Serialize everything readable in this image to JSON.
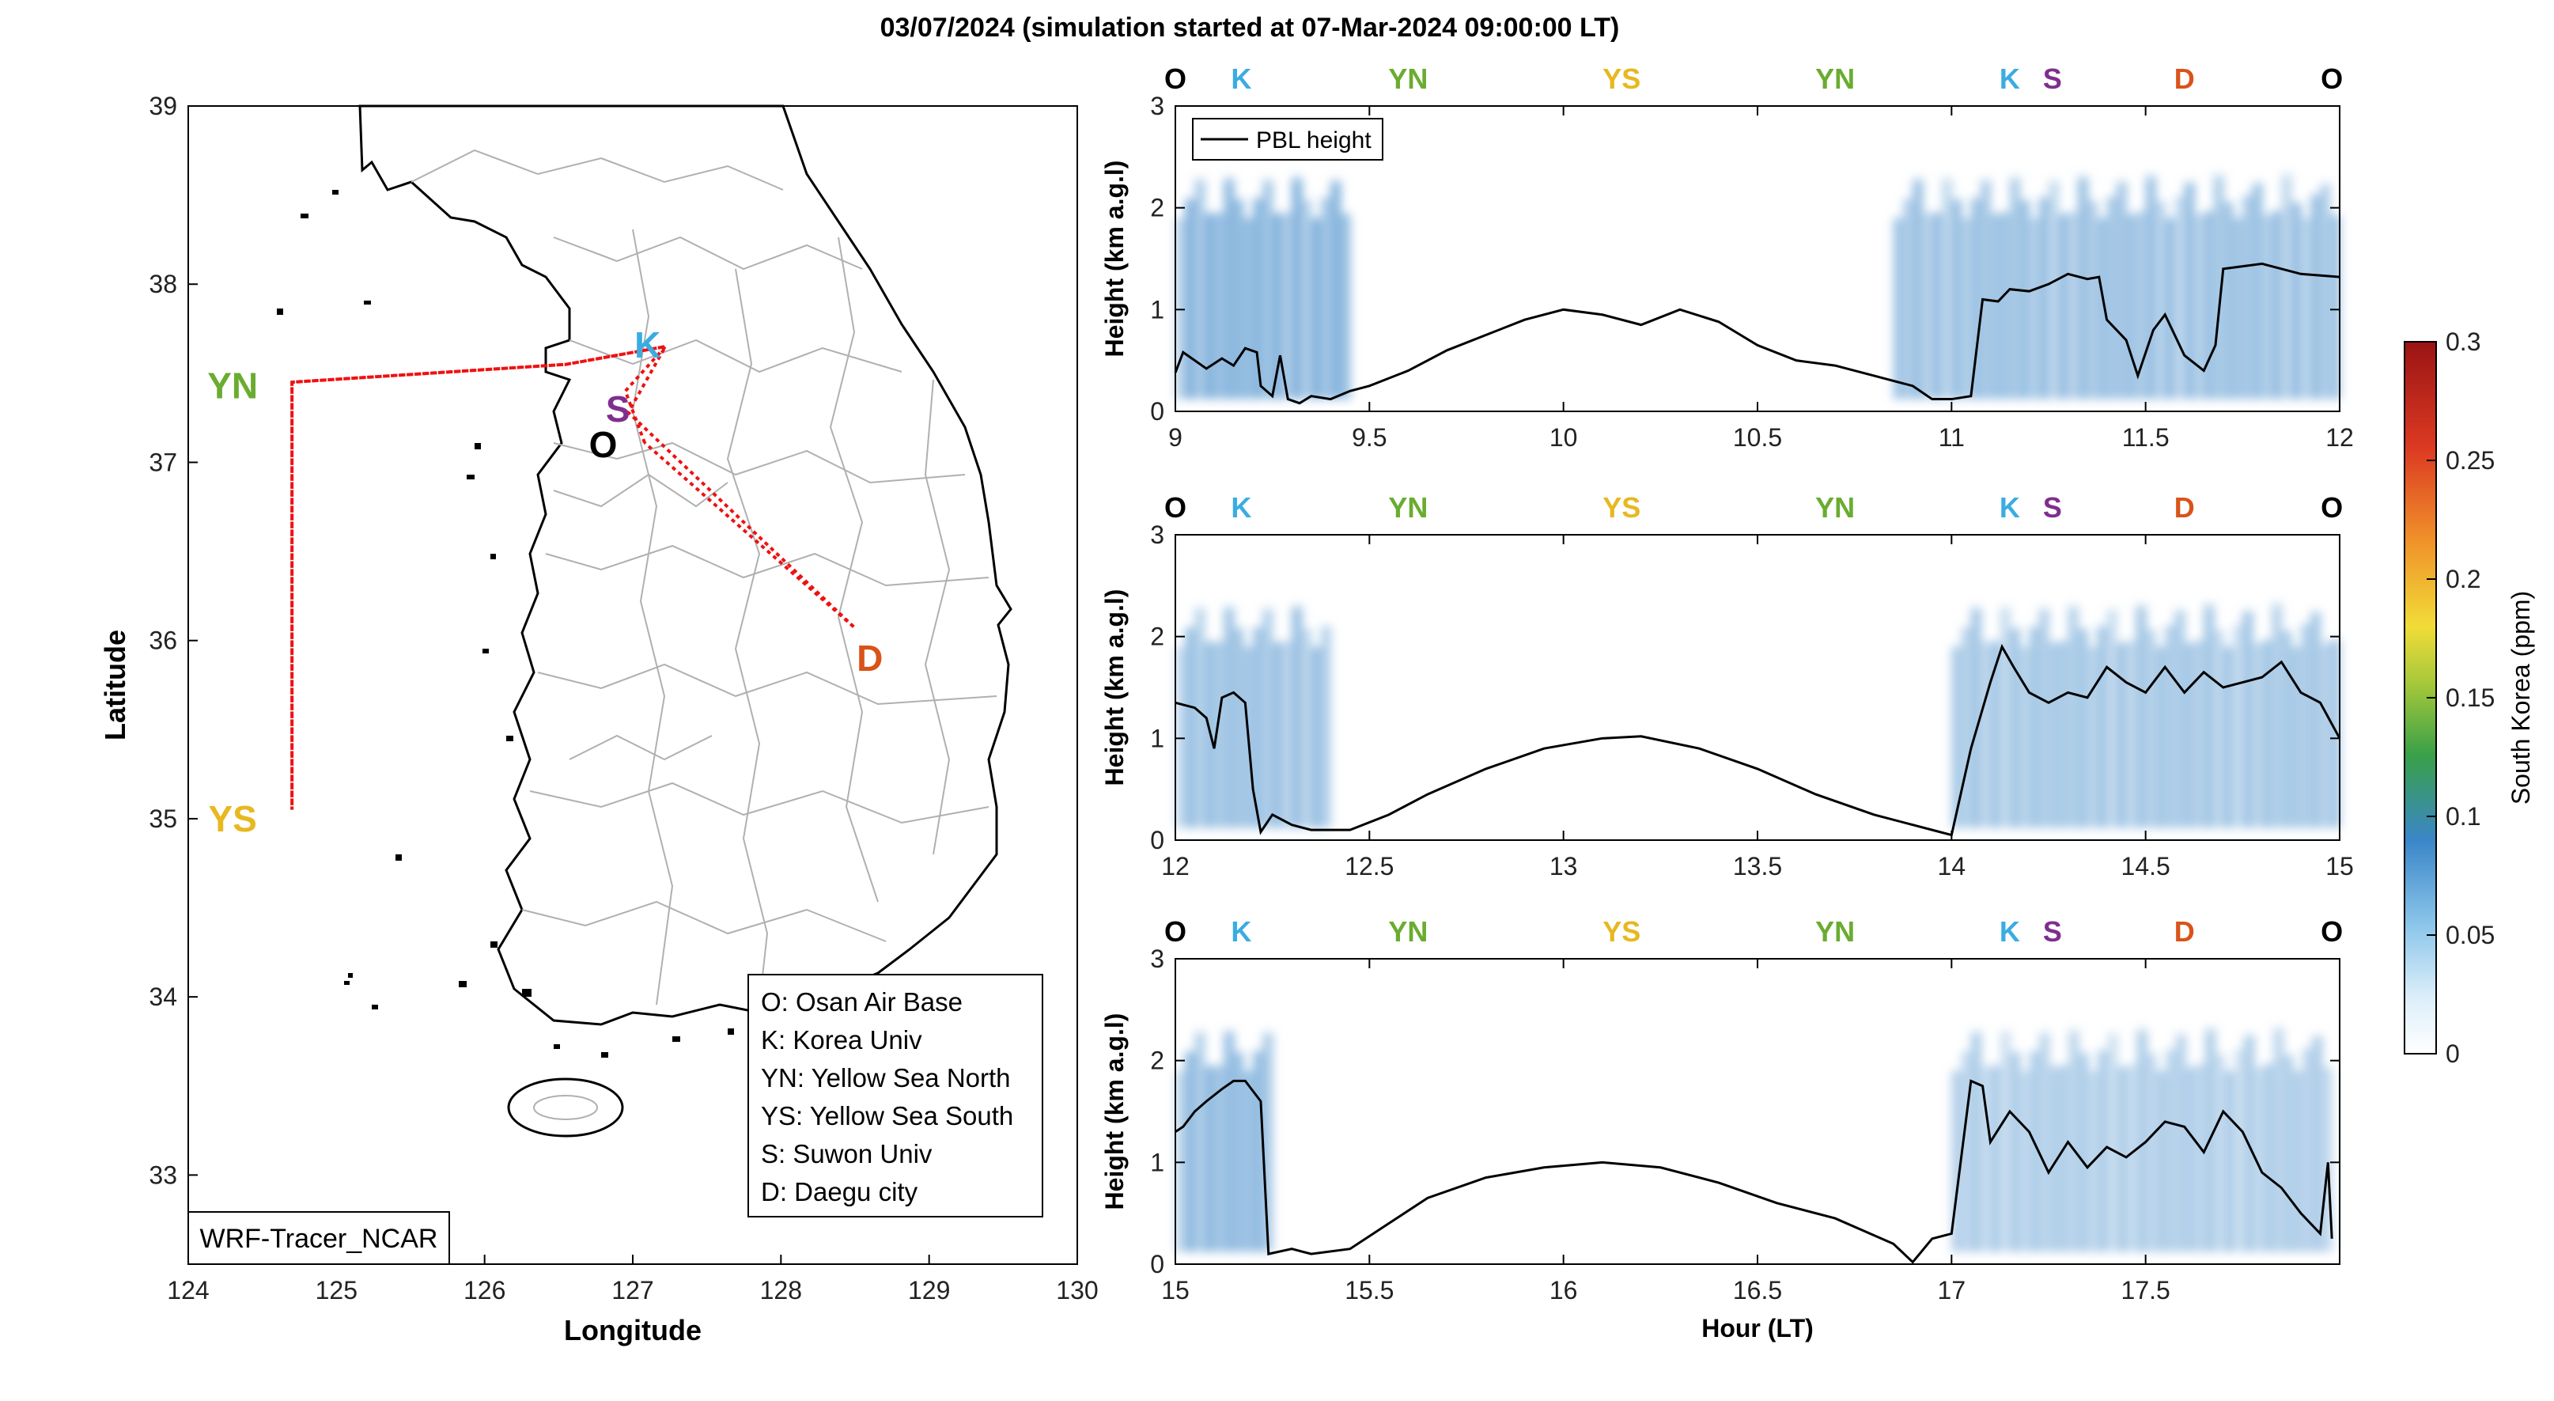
{
  "title": "03/07/2024 (simulation started at 07-Mar-2024 09:00:00 LT)",
  "colors": {
    "O": "#000000",
    "K": "#3aace2",
    "S": "#7e2f8e",
    "YN": "#6aac30",
    "YS": "#e7b820",
    "D": "#d95319",
    "track": "#ee1111",
    "border": "#b0b0b0",
    "coast": "#000000",
    "pbl": "#000000"
  },
  "map": {
    "xlabel": "Longitude",
    "ylabel": "Latitude",
    "xlim": [
      124,
      130
    ],
    "ylim": [
      32.5,
      39
    ],
    "xticks": [
      "124",
      "125",
      "126",
      "127",
      "128",
      "129",
      "130"
    ],
    "yticks": [
      "33",
      "34",
      "35",
      "36",
      "37",
      "38",
      "39"
    ],
    "model_label": "WRF-Tracer_NCAR",
    "legend": [
      "O: Osan Air Base",
      "K: Korea Univ",
      "YN: Yellow Sea North",
      "YS: Yellow Sea South",
      "S: Suwon Univ",
      "D: Daegu city"
    ],
    "sites": [
      {
        "id": "YN",
        "label": "YN",
        "lon": 124.3,
        "lat": 37.43
      },
      {
        "id": "YS",
        "label": "YS",
        "lon": 124.3,
        "lat": 35.0
      },
      {
        "id": "K",
        "label": "K",
        "lon": 127.1,
        "lat": 37.66
      },
      {
        "id": "S",
        "label": "S",
        "lon": 126.9,
        "lat": 37.3
      },
      {
        "id": "O",
        "label": "O",
        "lon": 126.8,
        "lat": 37.1
      },
      {
        "id": "D",
        "label": "D",
        "lon": 128.6,
        "lat": 35.9
      }
    ],
    "track": [
      [
        127.08,
        37.11
      ],
      [
        126.95,
        37.4
      ],
      [
        127.22,
        37.65
      ],
      [
        126.55,
        37.55
      ],
      [
        124.7,
        37.45
      ],
      [
        124.7,
        35.05
      ],
      [
        124.7,
        37.45
      ],
      [
        126.55,
        37.55
      ],
      [
        127.22,
        37.65
      ],
      [
        126.97,
        37.28
      ],
      [
        128.5,
        36.07
      ],
      [
        127.08,
        37.11
      ]
    ]
  },
  "panels_common": {
    "ylabel": "Height (km a.g.l)",
    "xlabel": "Hour (LT)",
    "legend_label": "PBL height",
    "yticks": [
      "0",
      "1",
      "2",
      "3"
    ],
    "ylim": [
      0,
      3
    ]
  },
  "chart_data": [
    {
      "type": "line",
      "series": [
        {
          "name": "PBL height"
        }
      ],
      "xlim": [
        9,
        12
      ],
      "ylim": [
        0,
        3
      ],
      "xticks": [
        "9",
        "9.5",
        "10",
        "10.5",
        "11",
        "11.5",
        "12"
      ],
      "site_labels": [
        {
          "id": "O",
          "label": "O",
          "x": 9.0
        },
        {
          "id": "K",
          "label": "K",
          "x": 9.17
        },
        {
          "id": "YN",
          "label": "YN",
          "x": 9.6
        },
        {
          "id": "YS",
          "label": "YS",
          "x": 10.15
        },
        {
          "id": "YN",
          "label": "YN",
          "x": 10.7
        },
        {
          "id": "K",
          "label": "K",
          "x": 11.15
        },
        {
          "id": "S",
          "label": "S",
          "x": 11.26
        },
        {
          "id": "D",
          "label": "D",
          "x": 11.6
        },
        {
          "id": "O",
          "label": "O",
          "x": 11.98
        }
      ],
      "pbl": [
        [
          9.0,
          0.38
        ],
        [
          9.02,
          0.58
        ],
        [
          9.05,
          0.5
        ],
        [
          9.08,
          0.42
        ],
        [
          9.12,
          0.52
        ],
        [
          9.15,
          0.45
        ],
        [
          9.18,
          0.62
        ],
        [
          9.21,
          0.58
        ],
        [
          9.22,
          0.25
        ],
        [
          9.25,
          0.15
        ],
        [
          9.27,
          0.55
        ],
        [
          9.29,
          0.12
        ],
        [
          9.32,
          0.08
        ],
        [
          9.35,
          0.15
        ],
        [
          9.4,
          0.12
        ],
        [
          9.45,
          0.2
        ],
        [
          9.5,
          0.25
        ],
        [
          9.6,
          0.4
        ],
        [
          9.7,
          0.6
        ],
        [
          9.8,
          0.75
        ],
        [
          9.9,
          0.9
        ],
        [
          10.0,
          1.0
        ],
        [
          10.1,
          0.95
        ],
        [
          10.2,
          0.85
        ],
        [
          10.3,
          1.0
        ],
        [
          10.4,
          0.88
        ],
        [
          10.5,
          0.65
        ],
        [
          10.6,
          0.5
        ],
        [
          10.7,
          0.45
        ],
        [
          10.8,
          0.35
        ],
        [
          10.9,
          0.25
        ],
        [
          10.95,
          0.12
        ],
        [
          11.0,
          0.12
        ],
        [
          11.05,
          0.15
        ],
        [
          11.08,
          1.1
        ],
        [
          11.12,
          1.08
        ],
        [
          11.15,
          1.2
        ],
        [
          11.2,
          1.18
        ],
        [
          11.25,
          1.25
        ],
        [
          11.3,
          1.35
        ],
        [
          11.35,
          1.3
        ],
        [
          11.38,
          1.32
        ],
        [
          11.4,
          0.9
        ],
        [
          11.45,
          0.7
        ],
        [
          11.48,
          0.35
        ],
        [
          11.52,
          0.8
        ],
        [
          11.55,
          0.95
        ],
        [
          11.6,
          0.55
        ],
        [
          11.65,
          0.4
        ],
        [
          11.68,
          0.65
        ],
        [
          11.7,
          1.4
        ],
        [
          11.8,
          1.45
        ],
        [
          11.9,
          1.35
        ],
        [
          12.0,
          1.32
        ]
      ],
      "tracer_patches": [
        {
          "x0": 9.0,
          "x1": 9.45,
          "peak": 0.06
        },
        {
          "x0": 10.85,
          "x1": 12.0,
          "peak": 0.05
        }
      ]
    },
    {
      "type": "line",
      "series": [
        {
          "name": "PBL height"
        }
      ],
      "xlim": [
        12,
        15
      ],
      "ylim": [
        0,
        3
      ],
      "xticks": [
        "12",
        "12.5",
        "13",
        "13.5",
        "14",
        "14.5",
        "15"
      ],
      "site_labels": [
        {
          "id": "O",
          "label": "O",
          "x": 12.0
        },
        {
          "id": "K",
          "label": "K",
          "x": 12.17
        },
        {
          "id": "YN",
          "label": "YN",
          "x": 12.6
        },
        {
          "id": "YS",
          "label": "YS",
          "x": 13.15
        },
        {
          "id": "YN",
          "label": "YN",
          "x": 13.7
        },
        {
          "id": "K",
          "label": "K",
          "x": 14.15
        },
        {
          "id": "S",
          "label": "S",
          "x": 14.26
        },
        {
          "id": "D",
          "label": "D",
          "x": 14.6
        },
        {
          "id": "O",
          "label": "O",
          "x": 14.98
        }
      ],
      "pbl": [
        [
          12.0,
          1.35
        ],
        [
          12.05,
          1.3
        ],
        [
          12.08,
          1.2
        ],
        [
          12.1,
          0.9
        ],
        [
          12.12,
          1.4
        ],
        [
          12.15,
          1.45
        ],
        [
          12.18,
          1.35
        ],
        [
          12.2,
          0.5
        ],
        [
          12.22,
          0.08
        ],
        [
          12.25,
          0.25
        ],
        [
          12.3,
          0.15
        ],
        [
          12.35,
          0.1
        ],
        [
          12.45,
          0.1
        ],
        [
          12.55,
          0.25
        ],
        [
          12.65,
          0.45
        ],
        [
          12.8,
          0.7
        ],
        [
          12.95,
          0.9
        ],
        [
          13.1,
          1.0
        ],
        [
          13.2,
          1.02
        ],
        [
          13.35,
          0.9
        ],
        [
          13.5,
          0.7
        ],
        [
          13.65,
          0.45
        ],
        [
          13.8,
          0.25
        ],
        [
          13.9,
          0.15
        ],
        [
          13.95,
          0.1
        ],
        [
          14.0,
          0.05
        ],
        [
          14.05,
          0.9
        ],
        [
          14.1,
          1.55
        ],
        [
          14.13,
          1.9
        ],
        [
          14.16,
          1.7
        ],
        [
          14.2,
          1.45
        ],
        [
          14.25,
          1.35
        ],
        [
          14.3,
          1.45
        ],
        [
          14.35,
          1.4
        ],
        [
          14.4,
          1.7
        ],
        [
          14.45,
          1.55
        ],
        [
          14.5,
          1.45
        ],
        [
          14.55,
          1.7
        ],
        [
          14.6,
          1.45
        ],
        [
          14.65,
          1.65
        ],
        [
          14.7,
          1.5
        ],
        [
          14.75,
          1.55
        ],
        [
          14.8,
          1.6
        ],
        [
          14.85,
          1.75
        ],
        [
          14.9,
          1.45
        ],
        [
          14.95,
          1.35
        ],
        [
          15.0,
          1.0
        ]
      ],
      "tracer_patches": [
        {
          "x0": 12.0,
          "x1": 12.4,
          "peak": 0.05
        },
        {
          "x0": 14.0,
          "x1": 15.0,
          "peak": 0.045
        }
      ]
    },
    {
      "type": "line",
      "series": [
        {
          "name": "PBL height"
        }
      ],
      "xlim": [
        15,
        18
      ],
      "ylim": [
        0,
        3
      ],
      "xticks": [
        "15",
        "15.5",
        "16",
        "16.5",
        "17",
        "17.5"
      ],
      "site_labels": [
        {
          "id": "O",
          "label": "O",
          "x": 15.0
        },
        {
          "id": "K",
          "label": "K",
          "x": 15.17
        },
        {
          "id": "YN",
          "label": "YN",
          "x": 15.6
        },
        {
          "id": "YS",
          "label": "YS",
          "x": 16.15
        },
        {
          "id": "YN",
          "label": "YN",
          "x": 16.7
        },
        {
          "id": "K",
          "label": "K",
          "x": 17.15
        },
        {
          "id": "S",
          "label": "S",
          "x": 17.26
        },
        {
          "id": "D",
          "label": "D",
          "x": 17.6
        },
        {
          "id": "O",
          "label": "O",
          "x": 17.98
        }
      ],
      "pbl": [
        [
          15.0,
          1.3
        ],
        [
          15.02,
          1.35
        ],
        [
          15.05,
          1.5
        ],
        [
          15.08,
          1.6
        ],
        [
          15.12,
          1.72
        ],
        [
          15.15,
          1.8
        ],
        [
          15.18,
          1.8
        ],
        [
          15.22,
          1.6
        ],
        [
          15.24,
          0.1
        ],
        [
          15.3,
          0.15
        ],
        [
          15.35,
          0.1
        ],
        [
          15.45,
          0.15
        ],
        [
          15.55,
          0.4
        ],
        [
          15.65,
          0.65
        ],
        [
          15.8,
          0.85
        ],
        [
          15.95,
          0.95
        ],
        [
          16.1,
          1.0
        ],
        [
          16.25,
          0.95
        ],
        [
          16.4,
          0.8
        ],
        [
          16.55,
          0.6
        ],
        [
          16.7,
          0.45
        ],
        [
          16.85,
          0.2
        ],
        [
          16.9,
          0.02
        ],
        [
          16.95,
          0.25
        ],
        [
          17.0,
          0.3
        ],
        [
          17.05,
          1.8
        ],
        [
          17.08,
          1.75
        ],
        [
          17.1,
          1.2
        ],
        [
          17.15,
          1.5
        ],
        [
          17.2,
          1.3
        ],
        [
          17.25,
          0.9
        ],
        [
          17.3,
          1.2
        ],
        [
          17.35,
          0.95
        ],
        [
          17.4,
          1.15
        ],
        [
          17.45,
          1.05
        ],
        [
          17.5,
          1.2
        ],
        [
          17.55,
          1.4
        ],
        [
          17.6,
          1.35
        ],
        [
          17.65,
          1.1
        ],
        [
          17.7,
          1.5
        ],
        [
          17.75,
          1.3
        ],
        [
          17.8,
          0.9
        ],
        [
          17.85,
          0.75
        ],
        [
          17.9,
          0.5
        ],
        [
          17.95,
          0.3
        ],
        [
          17.97,
          1.0
        ],
        [
          17.98,
          0.25
        ]
      ],
      "tracer_patches": [
        {
          "x0": 15.0,
          "x1": 15.25,
          "peak": 0.055
        },
        {
          "x0": 17.0,
          "x1": 17.98,
          "peak": 0.04
        }
      ]
    },
    {
      "type": "heatmap",
      "colorbar_label": "South Korea (ppm)",
      "clim": [
        0,
        0.3
      ],
      "ticks": [
        "0",
        "0.05",
        "0.1",
        "0.15",
        "0.2",
        "0.25",
        "0.3"
      ]
    }
  ]
}
